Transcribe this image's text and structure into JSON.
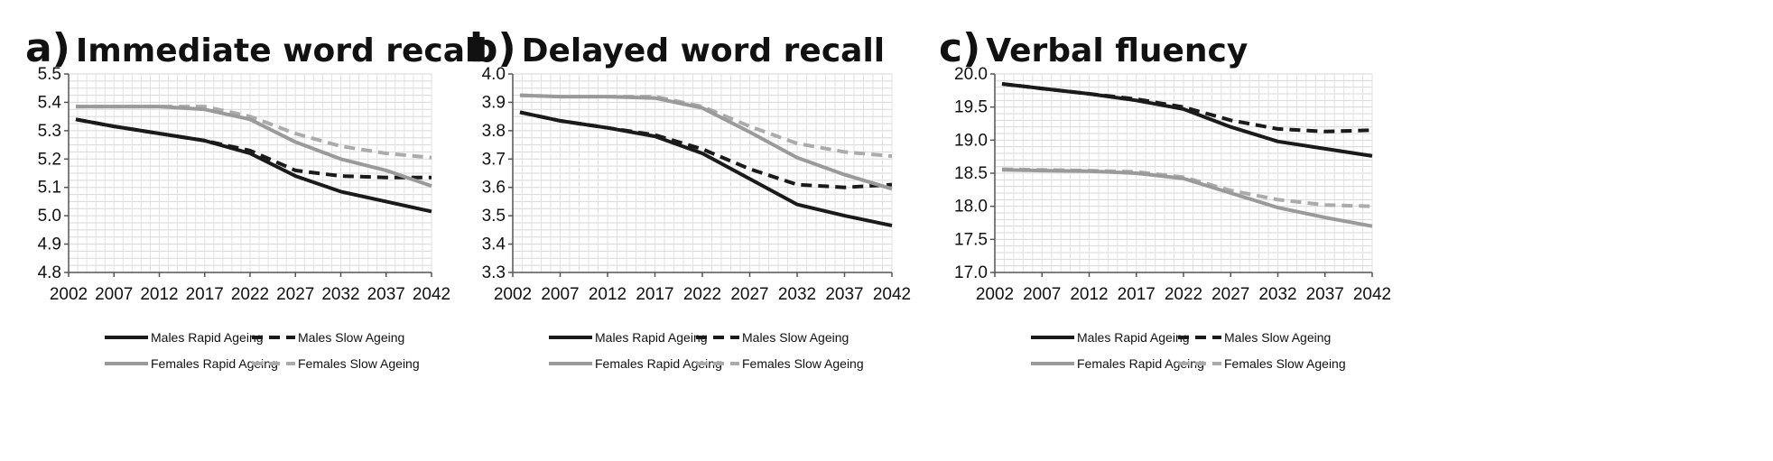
{
  "chart_data": [
    {
      "type": "line",
      "panel_letter": "a)",
      "title": "Immediate word recall",
      "xlabel": "",
      "ylabel": "",
      "categories": [
        "2002",
        "2007",
        "2012",
        "2017",
        "2022",
        "2027",
        "2032",
        "2037",
        "2042"
      ],
      "ylim": [
        4.8,
        5.5
      ],
      "yticks": [
        "4.8",
        "4.9",
        "5.0",
        "5.1",
        "5.2",
        "5.3",
        "5.4",
        "5.5"
      ],
      "grid": true,
      "legend_position": "bottom",
      "series": [
        {
          "name": "Males Rapid Ageing",
          "color": "#1a1a1a",
          "dash": "solid",
          "values": [
            5.34,
            5.315,
            5.29,
            5.265,
            5.22,
            5.14,
            5.085,
            5.05,
            5.015
          ]
        },
        {
          "name": "Males Slow Ageing",
          "color": "#1a1a1a",
          "dash": "dashed",
          "values": [
            5.34,
            5.315,
            5.29,
            5.265,
            5.23,
            5.16,
            5.14,
            5.135,
            5.135
          ]
        },
        {
          "name": "Females Rapid Ageing",
          "color": "#9a9a9a",
          "dash": "solid",
          "values": [
            5.385,
            5.385,
            5.385,
            5.375,
            5.34,
            5.26,
            5.2,
            5.16,
            5.105
          ]
        },
        {
          "name": "Females Slow Ageing",
          "color": "#ababab",
          "dash": "dashed",
          "values": [
            5.385,
            5.385,
            5.385,
            5.385,
            5.35,
            5.29,
            5.245,
            5.22,
            5.205
          ]
        }
      ]
    },
    {
      "type": "line",
      "panel_letter": "b)",
      "title": "Delayed word recall",
      "xlabel": "",
      "ylabel": "",
      "categories": [
        "2002",
        "2007",
        "2012",
        "2017",
        "2022",
        "2027",
        "2032",
        "2037",
        "2042"
      ],
      "ylim": [
        3.3,
        4.0
      ],
      "yticks": [
        "3.3",
        "3.4",
        "3.5",
        "3.6",
        "3.7",
        "3.8",
        "3.9",
        "4.0"
      ],
      "grid": true,
      "legend_position": "bottom",
      "series": [
        {
          "name": "Males Rapid Ageing",
          "color": "#1a1a1a",
          "dash": "solid",
          "values": [
            3.865,
            3.835,
            3.81,
            3.78,
            3.72,
            3.63,
            3.54,
            3.5,
            3.465
          ]
        },
        {
          "name": "Males Slow Ageing",
          "color": "#1a1a1a",
          "dash": "dashed",
          "values": [
            3.865,
            3.835,
            3.81,
            3.785,
            3.735,
            3.665,
            3.61,
            3.6,
            3.61
          ]
        },
        {
          "name": "Females Rapid Ageing",
          "color": "#9a9a9a",
          "dash": "solid",
          "values": [
            3.925,
            3.92,
            3.92,
            3.915,
            3.88,
            3.795,
            3.705,
            3.645,
            3.595
          ]
        },
        {
          "name": "Females Slow Ageing",
          "color": "#ababab",
          "dash": "dashed",
          "values": [
            3.925,
            3.92,
            3.92,
            3.92,
            3.885,
            3.815,
            3.755,
            3.725,
            3.71
          ]
        }
      ]
    },
    {
      "type": "line",
      "panel_letter": "c)",
      "title": "Verbal fluency",
      "xlabel": "",
      "ylabel": "",
      "categories": [
        "2002",
        "2007",
        "2012",
        "2017",
        "2022",
        "2027",
        "2032",
        "2037",
        "2042"
      ],
      "ylim": [
        17.0,
        20.0
      ],
      "yticks": [
        "17.0",
        "17.5",
        "18.0",
        "18.5",
        "19.0",
        "19.5",
        "20.0"
      ],
      "grid": true,
      "legend_position": "bottom",
      "series": [
        {
          "name": "Males Rapid Ageing",
          "color": "#1a1a1a",
          "dash": "solid",
          "values": [
            19.85,
            19.78,
            19.7,
            19.6,
            19.47,
            19.2,
            18.98,
            18.87,
            18.76
          ]
        },
        {
          "name": "Males Slow Ageing",
          "color": "#1a1a1a",
          "dash": "dashed",
          "values": [
            19.85,
            19.78,
            19.7,
            19.62,
            19.5,
            19.3,
            19.17,
            19.13,
            19.15
          ]
        },
        {
          "name": "Females Rapid Ageing",
          "color": "#9a9a9a",
          "dash": "solid",
          "values": [
            18.55,
            18.54,
            18.53,
            18.5,
            18.42,
            18.2,
            17.98,
            17.83,
            17.7
          ]
        },
        {
          "name": "Females Slow Ageing",
          "color": "#ababab",
          "dash": "dashed",
          "values": [
            18.56,
            18.55,
            18.54,
            18.52,
            18.44,
            18.24,
            18.1,
            18.02,
            18.0
          ]
        }
      ]
    }
  ]
}
